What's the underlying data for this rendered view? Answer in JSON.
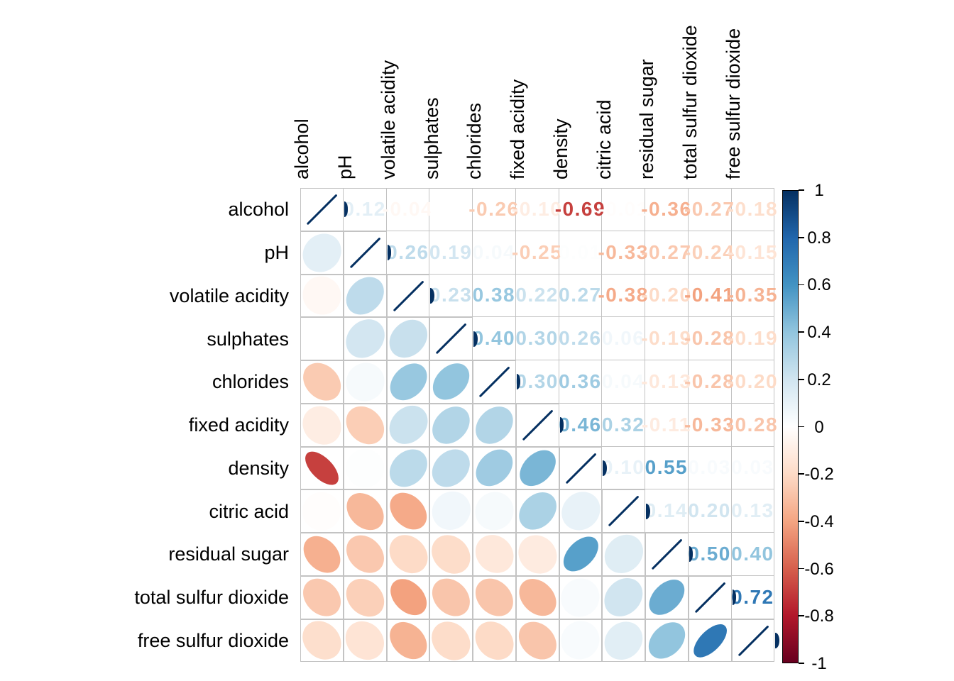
{
  "chart_data": {
    "type": "heatmap",
    "subtype": "correlation-matrix",
    "glyphs": {
      "lower_triangle": "ellipse",
      "upper_triangle": "number",
      "diagonal": "line (r=1)"
    },
    "variables": [
      "alcohol",
      "pH",
      "volatile acidity",
      "sulphates",
      "chlorides",
      "fixed acidity",
      "density",
      "citric acid",
      "residual sugar",
      "total sulfur dioxide",
      "free sulfur dioxide"
    ],
    "matrix": [
      [
        1.0,
        0.12,
        -0.04,
        0.0,
        -0.26,
        -0.1,
        -0.69,
        -0.01,
        -0.36,
        -0.27,
        -0.18
      ],
      [
        0.12,
        1.0,
        0.26,
        0.19,
        0.04,
        -0.25,
        0.01,
        -0.33,
        -0.27,
        -0.24,
        -0.15
      ],
      [
        -0.04,
        0.26,
        1.0,
        0.23,
        0.38,
        0.22,
        0.27,
        -0.38,
        -0.2,
        -0.41,
        -0.35
      ],
      [
        0.0,
        0.19,
        0.23,
        1.0,
        0.4,
        0.3,
        0.26,
        0.06,
        -0.19,
        -0.28,
        -0.19
      ],
      [
        -0.26,
        0.04,
        0.38,
        0.4,
        1.0,
        0.3,
        0.36,
        0.04,
        -0.13,
        -0.28,
        -0.2
      ],
      [
        -0.1,
        -0.25,
        0.22,
        0.3,
        0.3,
        1.0,
        0.46,
        0.32,
        -0.11,
        -0.33,
        -0.28
      ],
      [
        -0.69,
        0.01,
        0.27,
        0.26,
        0.36,
        0.46,
        1.0,
        0.1,
        0.55,
        0.03,
        0.03
      ],
      [
        -0.01,
        -0.33,
        -0.38,
        0.06,
        0.04,
        0.32,
        0.1,
        1.0,
        0.14,
        0.2,
        0.13
      ],
      [
        -0.36,
        -0.27,
        -0.2,
        -0.19,
        -0.13,
        -0.11,
        0.55,
        0.14,
        1.0,
        0.5,
        0.4
      ],
      [
        -0.27,
        -0.24,
        -0.41,
        -0.28,
        -0.28,
        -0.33,
        0.03,
        0.2,
        0.5,
        1.0,
        0.72
      ],
      [
        -0.18,
        -0.15,
        -0.35,
        -0.19,
        -0.2,
        -0.28,
        0.03,
        0.13,
        0.4,
        0.72,
        1.0
      ]
    ],
    "colorbar": {
      "min": -1,
      "max": 1,
      "tick_labels": [
        "1",
        "0.8",
        "0.6",
        "0.4",
        "0.2",
        "0",
        "-0.2",
        "-0.4",
        "-0.6",
        "-0.8",
        "-1"
      ],
      "position": "right"
    },
    "palette": {
      "name": "RdBu (blue = positive, red = negative)",
      "anchors_low_to_high": [
        "#67001F",
        "#B2182B",
        "#D6604D",
        "#F4A582",
        "#FDDBC7",
        "#FFFFFF",
        "#D1E5F0",
        "#92C5DE",
        "#4393C3",
        "#2166AC",
        "#053061"
      ]
    },
    "colors": {
      "grid": "#C3C3C3",
      "label_text": "#000000",
      "background": "#FFFFFF"
    },
    "layout_hints": {
      "grid": true,
      "row_labels": "left",
      "column_labels": "top-rotated-90"
    }
  }
}
